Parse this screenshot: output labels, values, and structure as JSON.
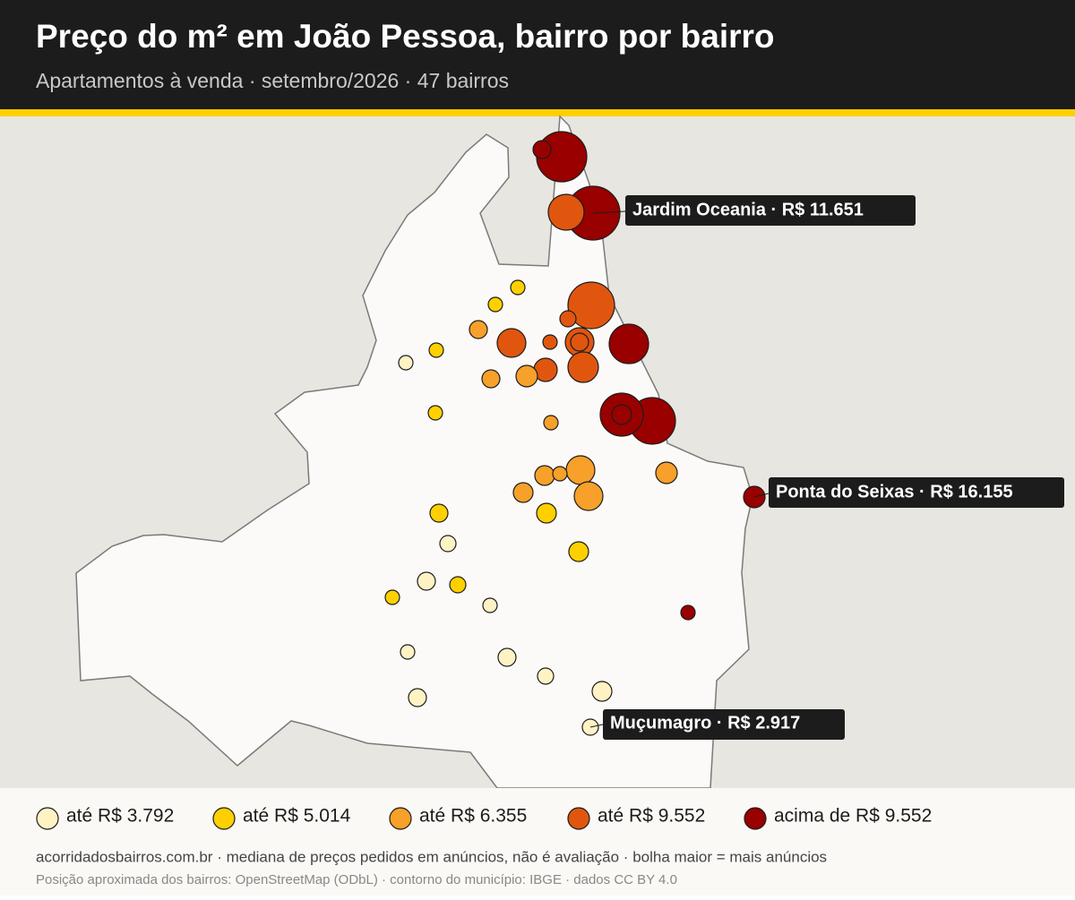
{
  "header": {
    "title": "Preço do m² em João Pessoa, bairro por bairro",
    "subtitle": "Apartamentos à venda · setembro/2026 · 47 bairros"
  },
  "callouts": [
    {
      "label": "Jardim Oceania · R$ 11.651"
    },
    {
      "label": "Ponta do Seixas · R$ 16.155"
    },
    {
      "label": "Muçumagro · R$ 2.917"
    }
  ],
  "legend": {
    "items": [
      {
        "label": "até R$ 3.792",
        "color": "#fff3c4"
      },
      {
        "label": "até R$ 5.014",
        "color": "#ffd000"
      },
      {
        "label": "até R$ 6.355",
        "color": "#f7a02a"
      },
      {
        "label": "até R$ 9.552",
        "color": "#e0560f"
      },
      {
        "label": "acima de R$ 9.552",
        "color": "#990000"
      }
    ]
  },
  "footer": {
    "source": "acorridadosbairros.com.br · mediana de preços pedidos em anúncios, não é avaliação · bolha maior = mais anúncios",
    "credits": "Posição aproximada dos bairros: OpenStreetMap (ODbL) · contorno do município: IBGE · dados CC BY 4.0"
  }
}
